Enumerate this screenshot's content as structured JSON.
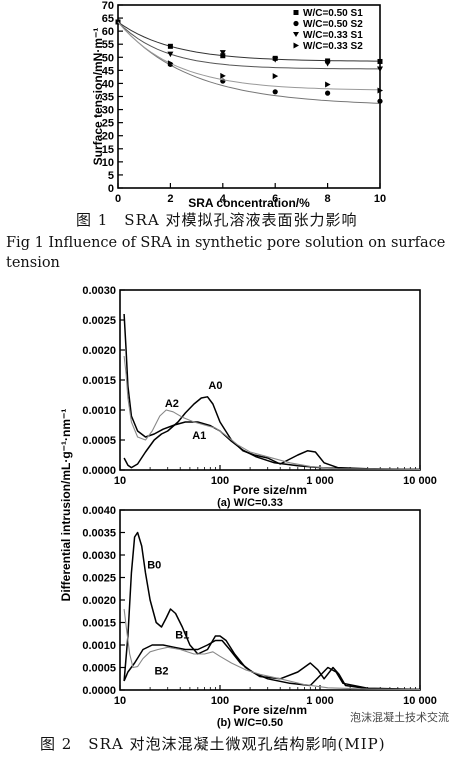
{
  "fig1": {
    "caption_cn": "图 1　SRA 对模拟孔溶液表面张力影响",
    "caption_en": "Fig 1 Influence of SRA in synthetic pore solution on surface tension"
  },
  "fig2": {
    "caption_cn": "图 2　SRA 对泡沫混凝土微观孔结构影响(MIP)"
  },
  "watermark": "泡沫混凝土技术交流",
  "chart_data": [
    {
      "type": "scatter",
      "xlabel": "SRA concentration/%",
      "ylabel": "Surface tension/mN·m⁻¹",
      "xlim": [
        0,
        10
      ],
      "ylim": [
        0,
        70
      ],
      "xticks": [
        "0",
        "2",
        "4",
        "6",
        "8",
        "10"
      ],
      "yticks": [
        "0",
        "5",
        "10",
        "15",
        "20",
        "25",
        "30",
        "35",
        "40",
        "45",
        "50",
        "55",
        "60",
        "65",
        "70"
      ],
      "legend_position": "top-right",
      "x": [
        0,
        2,
        4,
        6,
        8,
        10
      ],
      "series": [
        {
          "name": "W/C=0.50 S1",
          "marker": "square",
          "values": [
            63.5,
            54.2,
            50.6,
            49.6,
            48.6,
            48.4
          ]
        },
        {
          "name": "W/C=0.50 S2",
          "marker": "circle",
          "values": [
            63.5,
            47.3,
            40.9,
            36.8,
            36.3,
            33.2
          ]
        },
        {
          "name": "W/C=0.33 S1",
          "marker": "triangle-down",
          "values": [
            63.5,
            51.2,
            51.8,
            49.1,
            47.6,
            45.5
          ]
        },
        {
          "name": "W/C=0.33 S2",
          "marker": "triangle-right",
          "values": [
            63.5,
            47.7,
            42.9,
            42.8,
            39.6,
            37.3
          ]
        }
      ]
    },
    {
      "type": "line",
      "subtitle": "(a) W/C=0.33",
      "xlabel": "Pore size/nm",
      "ylabel": "Differential intrusion/mL·g⁻¹·nm⁻¹",
      "xscale": "log",
      "xlim": [
        10,
        10000
      ],
      "ylim": [
        0,
        0.003
      ],
      "xticks": [
        "10",
        "100",
        "1 000",
        "10 000"
      ],
      "yticks": [
        "0.0000",
        "0.0005",
        "0.0010",
        "0.0015",
        "0.0020",
        "0.0025",
        "0.0030"
      ],
      "series": [
        {
          "name": "A0",
          "color": "#000000",
          "points": [
            [
              11,
              0.0002
            ],
            [
              12,
              8e-05
            ],
            [
              13,
              4e-05
            ],
            [
              15,
              0.0001
            ],
            [
              18,
              0.0003
            ],
            [
              22,
              0.0005
            ],
            [
              26,
              0.0006
            ],
            [
              30,
              0.00065
            ],
            [
              38,
              0.0008
            ],
            [
              45,
              0.00095
            ],
            [
              55,
              0.0011
            ],
            [
              65,
              0.0012
            ],
            [
              75,
              0.00122
            ],
            [
              85,
              0.0011
            ],
            [
              100,
              0.0008
            ],
            [
              130,
              0.0005
            ],
            [
              170,
              0.00032
            ],
            [
              220,
              0.00025
            ],
            [
              300,
              0.0002
            ],
            [
              400,
              0.0001
            ],
            [
              600,
              0.00025
            ],
            [
              750,
              0.00032
            ],
            [
              900,
              0.0003
            ],
            [
              1100,
              0.00012
            ],
            [
              1500,
              4e-05
            ],
            [
              3000,
              2e-05
            ],
            [
              10000,
              1e-05
            ]
          ]
        },
        {
          "name": "A1",
          "color": "#000000",
          "points": [
            [
              11,
              0.0026
            ],
            [
              11.5,
              0.002
            ],
            [
              12,
              0.0014
            ],
            [
              13,
              0.0009
            ],
            [
              15,
              0.00065
            ],
            [
              18,
              0.00055
            ],
            [
              22,
              0.0006
            ],
            [
              27,
              0.00068
            ],
            [
              35,
              0.00075
            ],
            [
              45,
              0.0008
            ],
            [
              60,
              0.0008
            ],
            [
              80,
              0.00074
            ],
            [
              100,
              0.00065
            ],
            [
              130,
              0.00048
            ],
            [
              170,
              0.00033
            ],
            [
              230,
              0.00022
            ],
            [
              350,
              0.00012
            ],
            [
              600,
              7e-05
            ],
            [
              1000,
              4e-05
            ],
            [
              3000,
              1e-05
            ],
            [
              10000,
              1e-05
            ]
          ]
        },
        {
          "name": "A2",
          "color": "#888888",
          "points": [
            [
              11,
              0.0019
            ],
            [
              11.5,
              0.0016
            ],
            [
              12,
              0.0012
            ],
            [
              13,
              0.0008
            ],
            [
              15,
              0.00055
            ],
            [
              18,
              0.0005
            ],
            [
              21,
              0.00065
            ],
            [
              25,
              0.0009
            ],
            [
              29,
              0.001
            ],
            [
              34,
              0.00097
            ],
            [
              42,
              0.00088
            ],
            [
              55,
              0.0008
            ],
            [
              70,
              0.00075
            ],
            [
              90,
              0.0007
            ],
            [
              110,
              0.0006
            ],
            [
              150,
              0.00042
            ],
            [
              200,
              0.0003
            ],
            [
              300,
              0.00022
            ],
            [
              500,
              0.00012
            ],
            [
              800,
              6e-05
            ],
            [
              1500,
              2e-05
            ],
            [
              10000,
              1e-05
            ]
          ]
        }
      ]
    },
    {
      "type": "line",
      "subtitle": "(b) W/C=0.50",
      "xlabel": "Pore size/nm",
      "ylabel": "Differential intrusion/mL·g⁻¹·nm⁻¹",
      "xscale": "log",
      "xlim": [
        10,
        10000
      ],
      "ylim": [
        0,
        0.004
      ],
      "xticks": [
        "10",
        "100",
        "1 000",
        "10 000"
      ],
      "yticks": [
        "0.0000",
        "0.0005",
        "0.0010",
        "0.0015",
        "0.0020",
        "0.0025",
        "0.0030",
        "0.0035",
        "0.0040"
      ],
      "series": [
        {
          "name": "B0",
          "color": "#000000",
          "points": [
            [
              11,
              0.0002
            ],
            [
              12,
              0.0012
            ],
            [
              13,
              0.0026
            ],
            [
              14,
              0.0034
            ],
            [
              15,
              0.0035
            ],
            [
              16.5,
              0.0032
            ],
            [
              18,
              0.0026
            ],
            [
              20,
              0.002
            ],
            [
              23,
              0.0015
            ],
            [
              26,
              0.0014
            ],
            [
              29,
              0.0016
            ],
            [
              32,
              0.0018
            ],
            [
              36,
              0.0017
            ],
            [
              42,
              0.0014
            ],
            [
              50,
              0.001
            ],
            [
              60,
              0.0008
            ],
            [
              75,
              0.0009
            ],
            [
              90,
              0.0012
            ],
            [
              100,
              0.0012
            ],
            [
              115,
              0.0011
            ],
            [
              140,
              0.0008
            ],
            [
              180,
              0.0005
            ],
            [
              250,
              0.0003
            ],
            [
              400,
              0.00025
            ],
            [
              600,
              0.0004
            ],
            [
              800,
              0.0006
            ],
            [
              950,
              0.00045
            ],
            [
              1100,
              0.00025
            ],
            [
              1350,
              0.0005
            ],
            [
              1550,
              0.00035
            ],
            [
              1800,
              0.0001
            ],
            [
              3000,
              3e-05
            ],
            [
              10000,
              1e-05
            ]
          ]
        },
        {
          "name": "B1",
          "color": "#000000",
          "points": [
            [
              11,
              0.0002
            ],
            [
              12,
              0.0004
            ],
            [
              14,
              0.0006
            ],
            [
              17,
              0.0009
            ],
            [
              21,
              0.001
            ],
            [
              27,
              0.001
            ],
            [
              35,
              0.00095
            ],
            [
              45,
              0.0009
            ],
            [
              60,
              0.0009
            ],
            [
              75,
              0.001
            ],
            [
              90,
              0.0011
            ],
            [
              105,
              0.0011
            ],
            [
              125,
              0.0009
            ],
            [
              160,
              0.0006
            ],
            [
              210,
              0.0004
            ],
            [
              300,
              0.00025
            ],
            [
              500,
              0.00015
            ],
            [
              800,
              0.0001
            ],
            [
              1200,
              0.0005
            ],
            [
              1450,
              0.0004
            ],
            [
              1700,
              0.00015
            ],
            [
              3000,
              4e-05
            ],
            [
              10000,
              1e-05
            ]
          ]
        },
        {
          "name": "B2",
          "color": "#888888",
          "points": [
            [
              11,
              0.0018
            ],
            [
              11.7,
              0.0013
            ],
            [
              12.5,
              0.0008
            ],
            [
              13.5,
              0.0005
            ],
            [
              15,
              0.00052
            ],
            [
              17,
              0.0007
            ],
            [
              20,
              0.00085
            ],
            [
              24,
              0.0009
            ],
            [
              30,
              0.00095
            ],
            [
              40,
              0.0009
            ],
            [
              55,
              0.0008
            ],
            [
              70,
              0.0008
            ],
            [
              85,
              0.00085
            ],
            [
              100,
              0.00075
            ],
            [
              130,
              0.0006
            ],
            [
              180,
              0.00045
            ],
            [
              250,
              0.00035
            ],
            [
              400,
              0.00025
            ],
            [
              700,
              0.00012
            ],
            [
              1200,
              5e-05
            ],
            [
              3000,
              2e-05
            ],
            [
              10000,
              1e-05
            ]
          ]
        }
      ]
    }
  ]
}
